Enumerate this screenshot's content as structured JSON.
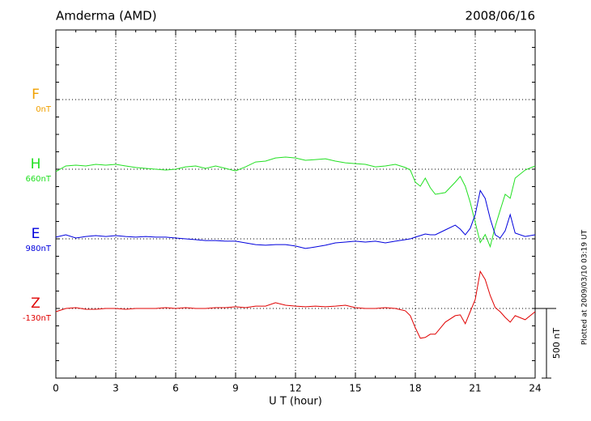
{
  "chart_data": {
    "type": "line",
    "title": "Amderma (AMD)",
    "date": "2008/06/16",
    "xlabel": "U T (hour)",
    "note": "Plotted at 2009/03/10 03:19 UT",
    "scale_bar": {
      "value": 500,
      "label": "500 nT"
    },
    "xlim": [
      0,
      24
    ],
    "xticks": [
      0,
      3,
      6,
      9,
      12,
      15,
      18,
      21,
      24
    ],
    "grid": true,
    "x": [
      0,
      0.5,
      1,
      1.5,
      2,
      2.5,
      3,
      3.5,
      4,
      4.5,
      5,
      5.5,
      6,
      6.5,
      7,
      7.5,
      8,
      8.5,
      9,
      9.5,
      10,
      10.5,
      11,
      11.5,
      12,
      12.5,
      13,
      13.5,
      14,
      14.5,
      15,
      15.5,
      16,
      16.5,
      17,
      17.5,
      17.75,
      18,
      18.25,
      18.5,
      18.75,
      19,
      19.5,
      20,
      20.25,
      20.5,
      20.75,
      21,
      21.25,
      21.5,
      21.75,
      22,
      22.25,
      22.5,
      22.75,
      23,
      23.5,
      24
    ],
    "series": [
      {
        "name": "F",
        "color": "#f0a000",
        "baseline": {
          "value": 0,
          "label": "0nT"
        }
      },
      {
        "name": "H",
        "color": "#22e022",
        "baseline": {
          "value": 660,
          "label": "660nT"
        },
        "values": [
          643,
          683,
          689,
          683,
          695,
          689,
          695,
          683,
          672,
          666,
          660,
          654,
          660,
          677,
          683,
          666,
          683,
          666,
          648,
          677,
          712,
          718,
          741,
          747,
          741,
          724,
          729,
          735,
          718,
          706,
          700,
          695,
          677,
          683,
          695,
          672,
          654,
          567,
          538,
          596,
          527,
          480,
          492,
          567,
          608,
          538,
          423,
          278,
          133,
          191,
          104,
          249,
          365,
          480,
          451,
          596,
          654,
          683
        ]
      },
      {
        "name": "E",
        "color": "#0000dd",
        "baseline": {
          "value": 980,
          "label": "980nT"
        },
        "values": [
          992,
          1009,
          986,
          997,
          1003,
          997,
          1003,
          997,
          992,
          997,
          992,
          992,
          986,
          980,
          974,
          968,
          968,
          963,
          963,
          951,
          939,
          934,
          939,
          939,
          928,
          911,
          922,
          934,
          951,
          957,
          963,
          957,
          963,
          951,
          963,
          974,
          980,
          992,
          1003,
          1015,
          1009,
          1009,
          1044,
          1078,
          1050,
          1009,
          1055,
          1154,
          1327,
          1270,
          1125,
          1009,
          986,
          1038,
          1154,
          1021,
          997,
          1009
        ]
      },
      {
        "name": "Z",
        "color": "#e00000",
        "baseline": {
          "value": -130,
          "label": "-130nT"
        },
        "values": [
          -153,
          -130,
          -124,
          -136,
          -136,
          -130,
          -130,
          -136,
          -130,
          -130,
          -130,
          -124,
          -130,
          -124,
          -130,
          -130,
          -124,
          -124,
          -118,
          -124,
          -113,
          -113,
          -89,
          -107,
          -113,
          -118,
          -113,
          -118,
          -113,
          -107,
          -124,
          -130,
          -130,
          -124,
          -130,
          -147,
          -182,
          -269,
          -344,
          -338,
          -315,
          -315,
          -228,
          -182,
          -176,
          -240,
          -153,
          -66,
          136,
          78,
          -37,
          -124,
          -153,
          -194,
          -228,
          -182,
          -211,
          -153
        ]
      }
    ]
  }
}
